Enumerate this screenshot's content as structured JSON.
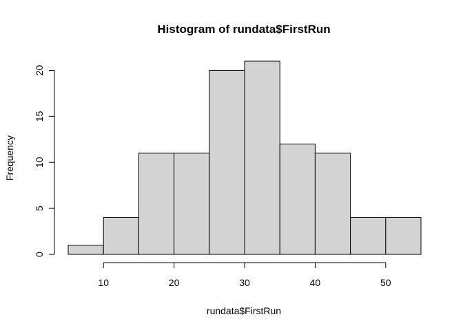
{
  "chart_data": {
    "type": "bar",
    "title": "Histogram of rundata$FirstRun",
    "xlabel": "rundata$FirstRun",
    "ylabel": "Frequency",
    "bins": [
      {
        "start": 5,
        "end": 10,
        "count": 1
      },
      {
        "start": 10,
        "end": 15,
        "count": 4
      },
      {
        "start": 15,
        "end": 20,
        "count": 11
      },
      {
        "start": 20,
        "end": 25,
        "count": 11
      },
      {
        "start": 25,
        "end": 30,
        "count": 20
      },
      {
        "start": 30,
        "end": 35,
        "count": 21
      },
      {
        "start": 35,
        "end": 40,
        "count": 12
      },
      {
        "start": 40,
        "end": 45,
        "count": 11
      },
      {
        "start": 45,
        "end": 50,
        "count": 4
      },
      {
        "start": 50,
        "end": 55,
        "count": 4
      }
    ],
    "xticks": [
      10,
      20,
      30,
      40,
      50
    ],
    "yticks": [
      0,
      5,
      10,
      15,
      20
    ],
    "xlim": [
      5,
      55
    ],
    "ylim": [
      0,
      21
    ],
    "bar_fill": "#d3d3d3",
    "bar_stroke": "#000000",
    "grid": false,
    "legend": "none"
  }
}
